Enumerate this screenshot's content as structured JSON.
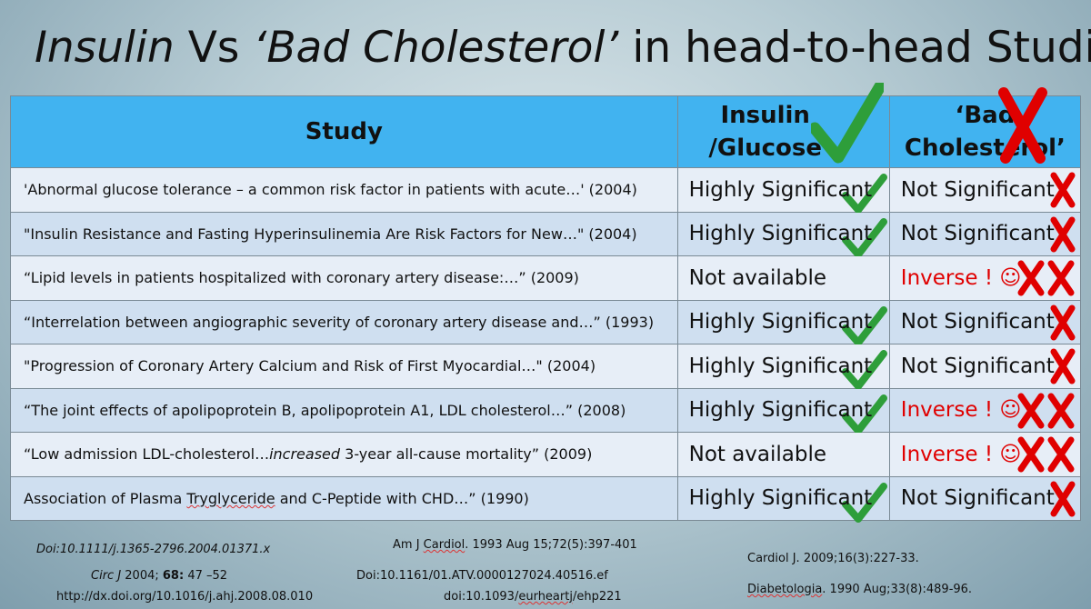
{
  "title": {
    "insulin": "Insulin",
    "vs": " Vs ",
    "bad": "‘Bad Cholesterol’",
    "rest": " in head-to-head Studies"
  },
  "headers": {
    "study": "Study",
    "insulin_line1": "Insulin",
    "insulin_line2": "/Glucose",
    "bad_line1": "‘Bad",
    "bad_line2": "Cholesterol’"
  },
  "rows": [
    {
      "study": "'Abnormal glucose tolerance – a common risk factor in patients with acute…' (2004)",
      "insulin": "Highly Significant",
      "insulin_check": true,
      "bad": "Not Significant",
      "bad_inverse": false
    },
    {
      "study": "\"Insulin Resistance and Fasting Hyperinsulinemia Are Risk Factors for New…\" (2004)",
      "insulin": "Highly Significant",
      "insulin_check": true,
      "bad": "Not Significant",
      "bad_inverse": false
    },
    {
      "study": "“Lipid levels in patients hospitalized with coronary artery disease:…” (2009)",
      "insulin": "Not available",
      "insulin_check": false,
      "bad": "Inverse ! ☺",
      "bad_inverse": true
    },
    {
      "study": "“Interrelation between angiographic severity of coronary artery disease and…” (1993)",
      "insulin": "Highly Significant",
      "insulin_check": true,
      "bad": "Not Significant",
      "bad_inverse": false
    },
    {
      "study": "\"Progression of Coronary Artery Calcium and Risk of First Myocardial…\" (2004)",
      "insulin": "Highly Significant",
      "insulin_check": true,
      "bad": "Not Significant",
      "bad_inverse": false
    },
    {
      "study": "“The joint effects of apolipoprotein B, apolipoprotein A1, LDL cholesterol…” (2008)",
      "insulin": "Highly Significant",
      "insulin_check": true,
      "bad": "Inverse ! ☺",
      "bad_inverse": true
    },
    {
      "study_pre": "“Low admission LDL-cholesterol…",
      "study_em": "increased",
      "study_post": " 3-year all-cause mortality” (2009)",
      "insulin": "Not available",
      "insulin_check": false,
      "bad": "Inverse ! ☺",
      "bad_inverse": true
    },
    {
      "study_pre": "Association of Plasma ",
      "study_wavy": "Tryglyceride",
      "study_post": " and C-Peptide with CHD…” (1990)",
      "insulin": "Highly Significant",
      "insulin_check": true,
      "bad": "Not Significant",
      "bad_inverse": false
    }
  ],
  "references": {
    "r1": "Doi:10.1111/j.1365-2796.2004.01371.x",
    "r2_journal": "Circ J",
    "r2_year": " 2004; ",
    "r2_vol": "68:",
    "r2_pages": " 47 –52",
    "r3": "http://dx.doi.org/10.1016/j.ahj.2008.08.010",
    "r4_pre": "Am J ",
    "r4_wavy": "Cardiol",
    "r4_post": ". 1993 Aug 15;72(5):397-401",
    "r5": "Doi:10.1161/01.ATV.0000127024.40516.ef",
    "r6_pre": "doi:10.1093/",
    "r6_wavy": "eurheartj",
    "r6_post": "/ehp221",
    "r7": "Cardiol J. 2009;16(3):227-33.",
    "r8_wavy": "Diabetologia",
    "r8_post": ". 1990 Aug;33(8):489-96."
  },
  "colors": {
    "header_bg": "#41b3f0",
    "row_light": "#e7eef7",
    "row_dark": "#cfdff0",
    "check_green": "#2e9e3a",
    "cross_red": "#e00000"
  },
  "icons": {
    "check": "check-icon",
    "cross": "cross-icon"
  }
}
